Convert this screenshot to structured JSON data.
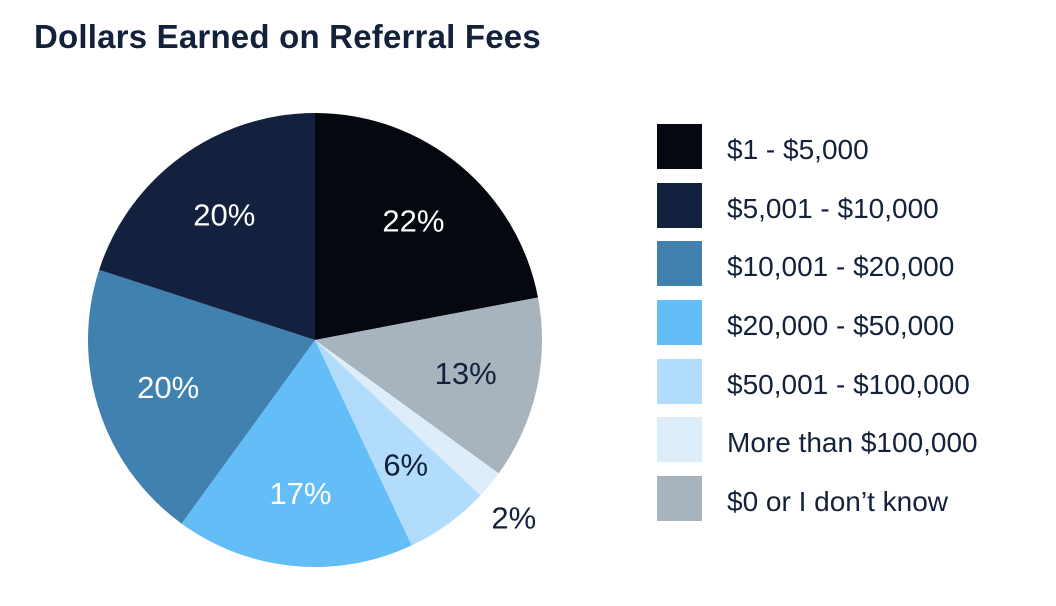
{
  "chart_data": {
    "type": "pie",
    "title": "Dollars Earned on Referral Fees",
    "slices": [
      {
        "label": "$1 - $5,000",
        "value": 22,
        "display": "22%",
        "color": "#05080f",
        "text_color": "#ffffff"
      },
      {
        "label": "$0 or I don’t know",
        "value": 13,
        "display": "13%",
        "color": "#a8b4bd",
        "text_color": "#13213a"
      },
      {
        "label": "More than $100,000",
        "value": 2,
        "display": "2%",
        "color": "#ddeefa",
        "text_color": "#13213a"
      },
      {
        "label": "$50,001 - $100,000",
        "value": 6,
        "display": "6%",
        "color": "#b2dcfb",
        "text_color": "#13213a"
      },
      {
        "label": "$20,000 - $50,000",
        "value": 17,
        "display": "17%",
        "color": "#63bdf6",
        "text_color": "#ffffff"
      },
      {
        "label": "$10,001 - $20,000",
        "value": 20,
        "display": "20%",
        "color": "#4081b0",
        "text_color": "#ffffff"
      },
      {
        "label": "$5,001 - $10,000",
        "value": 20,
        "display": "20%",
        "color": "#13213e",
        "text_color": "#ffffff"
      }
    ],
    "legend": [
      {
        "label": "$1 - $5,000",
        "color": "#05080f"
      },
      {
        "label": "$5,001 - $10,000",
        "color": "#13213e"
      },
      {
        "label": "$10,001 - $20,000",
        "color": "#4081b0"
      },
      {
        "label": "$20,000 - $50,000",
        "color": "#63bdf6"
      },
      {
        "label": "$50,001 - $100,000",
        "color": "#b2dcfb"
      },
      {
        "label": "More than $100,000",
        "color": "#ddeefa"
      },
      {
        "label": "$0 or I don’t know",
        "color": "#a8b4bd"
      }
    ],
    "legend_placement": "right"
  }
}
